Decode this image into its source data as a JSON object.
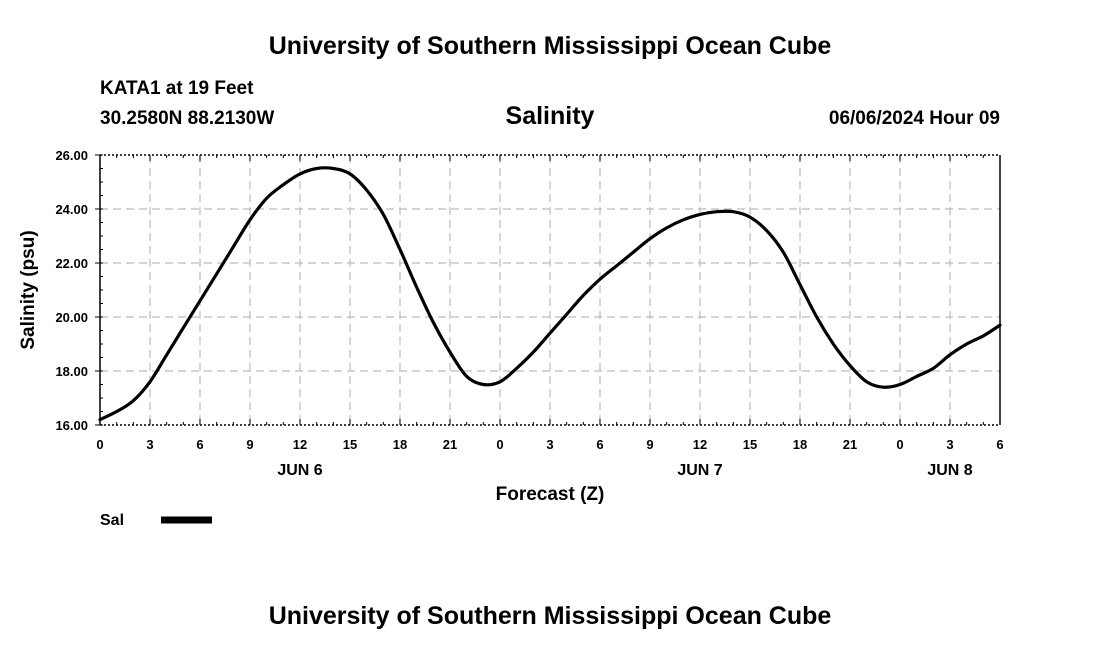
{
  "header": {
    "title": "University of Southern Mississippi Ocean Cube",
    "station": "KATA1 at 19 Feet",
    "coords": "30.2580N  88.2130W",
    "timestamp": "06/06/2024 Hour 09",
    "footer_title": "University of Southern Mississippi Ocean Cube"
  },
  "chart_data": {
    "type": "line",
    "title": "Salinity",
    "xlabel": "Forecast (Z)",
    "ylabel": "Salinity (psu)",
    "ylim": [
      16,
      26
    ],
    "yticks": [
      "16.00",
      "18.00",
      "20.00",
      "22.00",
      "24.00",
      "26.00"
    ],
    "x_hours_range": [
      0,
      54
    ],
    "xtick_labels": [
      "0",
      "3",
      "6",
      "9",
      "12",
      "15",
      "18",
      "21",
      "0",
      "3",
      "6",
      "9",
      "12",
      "15",
      "18",
      "21",
      "0",
      "3",
      "6"
    ],
    "date_labels": [
      {
        "label": "JUN 6",
        "hour": 12
      },
      {
        "label": "JUN 7",
        "hour": 36
      },
      {
        "label": "JUN 8",
        "hour": 51
      }
    ],
    "grid": true,
    "legend": {
      "position": "bottom-left",
      "entries": [
        {
          "name": "Sal",
          "color": "#000000"
        }
      ]
    },
    "series": [
      {
        "name": "Sal",
        "color": "#000000",
        "x": [
          0,
          1,
          2,
          3,
          4,
          5,
          6,
          7,
          8,
          9,
          10,
          11,
          12,
          13,
          14,
          15,
          16,
          17,
          18,
          19,
          20,
          21,
          22,
          23,
          24,
          25,
          26,
          27,
          28,
          29,
          30,
          31,
          32,
          33,
          34,
          35,
          36,
          37,
          38,
          39,
          40,
          41,
          42,
          43,
          44,
          45,
          46,
          47,
          48,
          49,
          50,
          51,
          52,
          53,
          54
        ],
        "y": [
          16.2,
          16.5,
          16.9,
          17.6,
          18.6,
          19.6,
          20.6,
          21.6,
          22.6,
          23.6,
          24.4,
          24.9,
          25.3,
          25.5,
          25.5,
          25.3,
          24.7,
          23.8,
          22.5,
          21.1,
          19.8,
          18.7,
          17.8,
          17.5,
          17.6,
          18.1,
          18.7,
          19.4,
          20.1,
          20.8,
          21.4,
          21.9,
          22.4,
          22.9,
          23.3,
          23.6,
          23.8,
          23.9,
          23.9,
          23.7,
          23.2,
          22.4,
          21.2,
          20.0,
          19.0,
          18.2,
          17.6,
          17.4,
          17.5,
          17.8,
          18.1,
          18.6,
          19.0,
          19.3,
          19.7
        ]
      }
    ]
  }
}
